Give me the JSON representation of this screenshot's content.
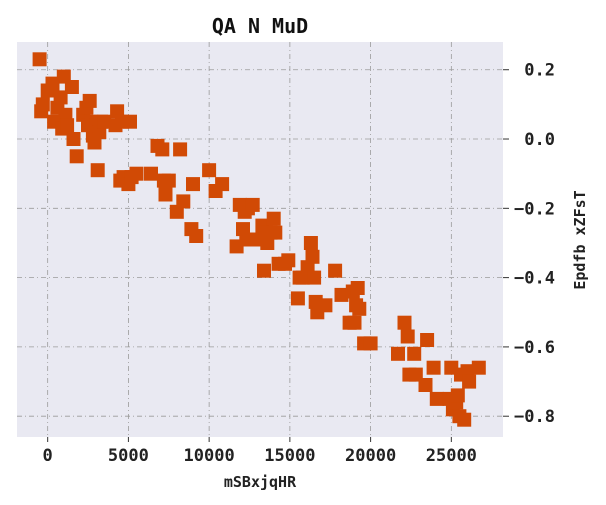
{
  "chart_data": {
    "type": "scatter",
    "title": "QA N MuD",
    "xlabel": "mSBxjqHR",
    "ylabel": "Epdfb xZFsT",
    "xlim": [
      -1900,
      28200
    ],
    "ylim": [
      -0.86,
      0.28
    ],
    "xticks": [
      0,
      5000,
      10000,
      15000,
      20000,
      25000
    ],
    "xtick_labels": [
      "0",
      "5000",
      "10000",
      "15000",
      "20000",
      "25000"
    ],
    "yticks": [
      0.2,
      0.0,
      -0.2,
      -0.4,
      -0.6,
      -0.8
    ],
    "ytick_labels": [
      "0.2",
      "0.0",
      "−0.2",
      "−0.4",
      "−0.6",
      "−0.8"
    ],
    "y_axis_side": "right",
    "grid": true,
    "legend": "none",
    "colors": {
      "marker": "#d14a05",
      "plot_bg": "#e9e9f2",
      "grid": "#9a9a9a",
      "text": "#222222"
    },
    "marker": "square",
    "series": [
      {
        "x": [
          -500,
          -400,
          -300,
          0,
          300,
          400,
          600,
          800,
          900,
          1000,
          1100,
          1200,
          1500,
          1600,
          1800,
          2200,
          2400,
          2500,
          2600,
          2700,
          2800,
          2900,
          3000,
          3100,
          3200,
          3300,
          3500,
          4200,
          4300,
          4500,
          4600,
          4700,
          5000,
          5100,
          5200,
          5500,
          6400,
          6800,
          7100,
          7200,
          7300,
          7500,
          8000,
          8200,
          8400,
          8900,
          9000,
          9200,
          10000,
          10400,
          10800,
          11700,
          11900,
          12100,
          12200,
          12300,
          12400,
          12700,
          12900,
          13000,
          13300,
          13400,
          13500,
          13600,
          13800,
          14000,
          14100,
          14300,
          14700,
          14900,
          15500,
          15600,
          15800,
          16100,
          16300,
          16400,
          16500,
          16600,
          16700,
          17200,
          17800,
          18200,
          18700,
          18900,
          19000,
          19100,
          19200,
          19300,
          19600,
          20000,
          21700,
          22100,
          22300,
          22400,
          22700,
          22800,
          23400,
          23500,
          23900,
          24100,
          24900,
          25000,
          25100,
          25300,
          25400,
          25500,
          25600,
          25800,
          26000,
          26100,
          26700
        ],
        "y": [
          0.23,
          0.08,
          0.1,
          0.14,
          0.16,
          0.05,
          0.09,
          0.12,
          0.03,
          0.18,
          0.07,
          0.04,
          0.15,
          0.0,
          -0.05,
          0.07,
          0.09,
          0.04,
          0.11,
          0.05,
          0.01,
          -0.01,
          0.04,
          -0.09,
          0.02,
          0.05,
          0.05,
          0.04,
          0.08,
          -0.12,
          0.05,
          -0.11,
          -0.13,
          0.05,
          -0.11,
          -0.1,
          -0.1,
          -0.02,
          -0.03,
          -0.12,
          -0.16,
          -0.12,
          -0.21,
          -0.03,
          -0.18,
          -0.26,
          -0.13,
          -0.28,
          -0.09,
          -0.15,
          -0.13,
          -0.31,
          -0.19,
          -0.26,
          -0.21,
          -0.29,
          -0.2,
          -0.19,
          -0.29,
          -0.29,
          -0.25,
          -0.38,
          -0.27,
          -0.3,
          -0.27,
          -0.23,
          -0.27,
          -0.36,
          -0.36,
          -0.35,
          -0.46,
          -0.4,
          -0.4,
          -0.37,
          -0.3,
          -0.34,
          -0.4,
          -0.47,
          -0.5,
          -0.48,
          -0.38,
          -0.45,
          -0.53,
          -0.44,
          -0.53,
          -0.48,
          -0.43,
          -0.49,
          -0.59,
          -0.59,
          -0.62,
          -0.53,
          -0.57,
          -0.68,
          -0.62,
          -0.68,
          -0.71,
          -0.58,
          -0.66,
          -0.75,
          -0.75,
          -0.66,
          -0.78,
          -0.76,
          -0.74,
          -0.8,
          -0.68,
          -0.81,
          -0.67,
          -0.7,
          -0.66
        ]
      }
    ]
  }
}
